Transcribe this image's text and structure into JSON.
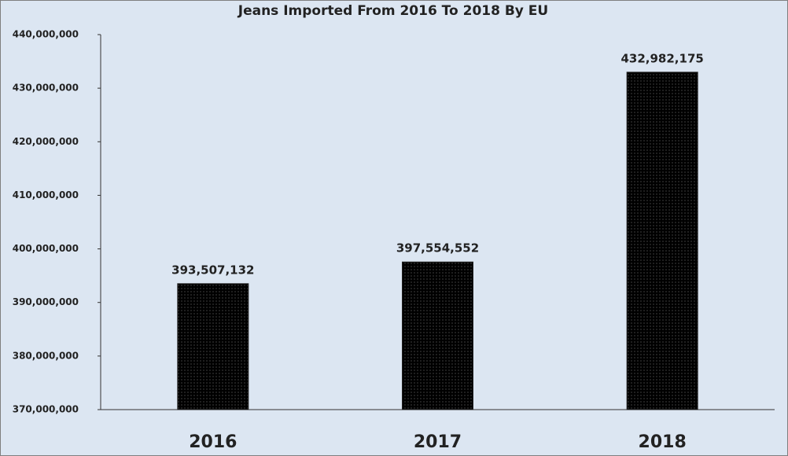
{
  "chart_data": {
    "type": "bar",
    "title": "Jeans Imported From 2016 To 2018 By EU",
    "categories": [
      "2016",
      "2017",
      "2018"
    ],
    "values": [
      393507132,
      397554552,
      432982175
    ],
    "value_labels": [
      "393,507,132",
      "397,554,552",
      "432,982,175"
    ],
    "color": "#ddd2bb",
    "ylim": [
      370000000,
      440000000
    ],
    "yticks": [
      {
        "value": 370000000,
        "label": "370,000,000"
      },
      {
        "value": 380000000,
        "label": "380,000,000"
      },
      {
        "value": 390000000,
        "label": "390,000,000"
      },
      {
        "value": 400000000,
        "label": "400,000,000"
      },
      {
        "value": 410000000,
        "label": "410,000,000"
      },
      {
        "value": 420000000,
        "label": "420,000,000"
      },
      {
        "value": 430000000,
        "label": "430,000,000"
      },
      {
        "value": 440000000,
        "label": "440,000,000"
      }
    ],
    "grid": false
  }
}
